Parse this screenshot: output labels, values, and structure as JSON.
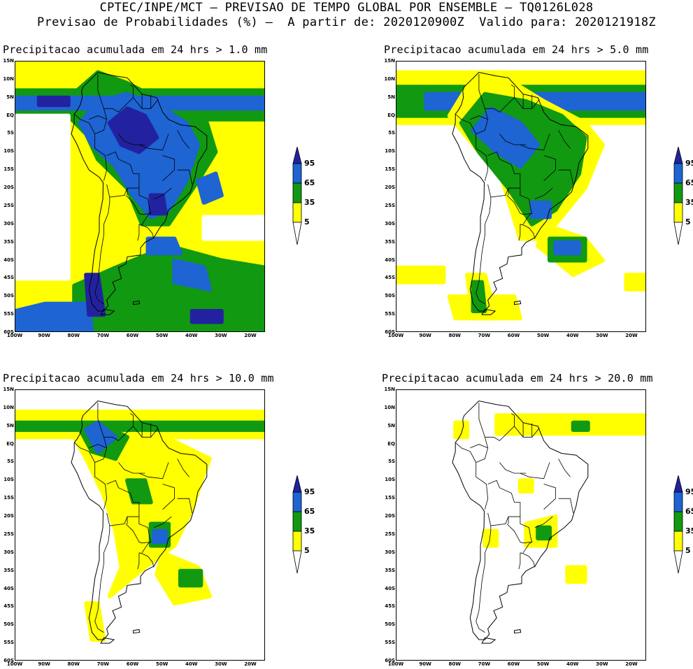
{
  "header": {
    "line1": "CPTEC/INPE/MCT — PREVISAO DE TEMPO GLOBAL POR ENSEMBLE — TQ0126L028",
    "line2": "Previsao de Probabilidades (%) —  A partir de: 2020120900Z  Valido para: 2020121918Z"
  },
  "axes": {
    "lat_labels": [
      "15N",
      "10N",
      "5N",
      "EQ",
      "5S",
      "10S",
      "15S",
      "20S",
      "25S",
      "30S",
      "35S",
      "40S",
      "45S",
      "50S",
      "55S",
      "60S"
    ],
    "lon_labels": [
      "100W",
      "90W",
      "80W",
      "70W",
      "60W",
      "50W",
      "40W",
      "30W",
      "20W"
    ]
  },
  "colors": {
    "c5": "#ffff00",
    "c35": "#119911",
    "c65": "#1e64d2",
    "c95": "#2222a0",
    "land": "#000000"
  },
  "legend": {
    "labels": [
      "95",
      "65",
      "35",
      "5"
    ]
  },
  "panels": [
    {
      "title": "Precipitacao acumulada em 24 hrs > 1.0 mm"
    },
    {
      "title": "Precipitacao acumulada em 24 hrs > 5.0 mm"
    },
    {
      "title": "Precipitacao acumulada em 24 hrs > 10.0 mm"
    },
    {
      "title": "Precipitacao acumulada em 24 hrs > 20.0 mm"
    }
  ]
}
